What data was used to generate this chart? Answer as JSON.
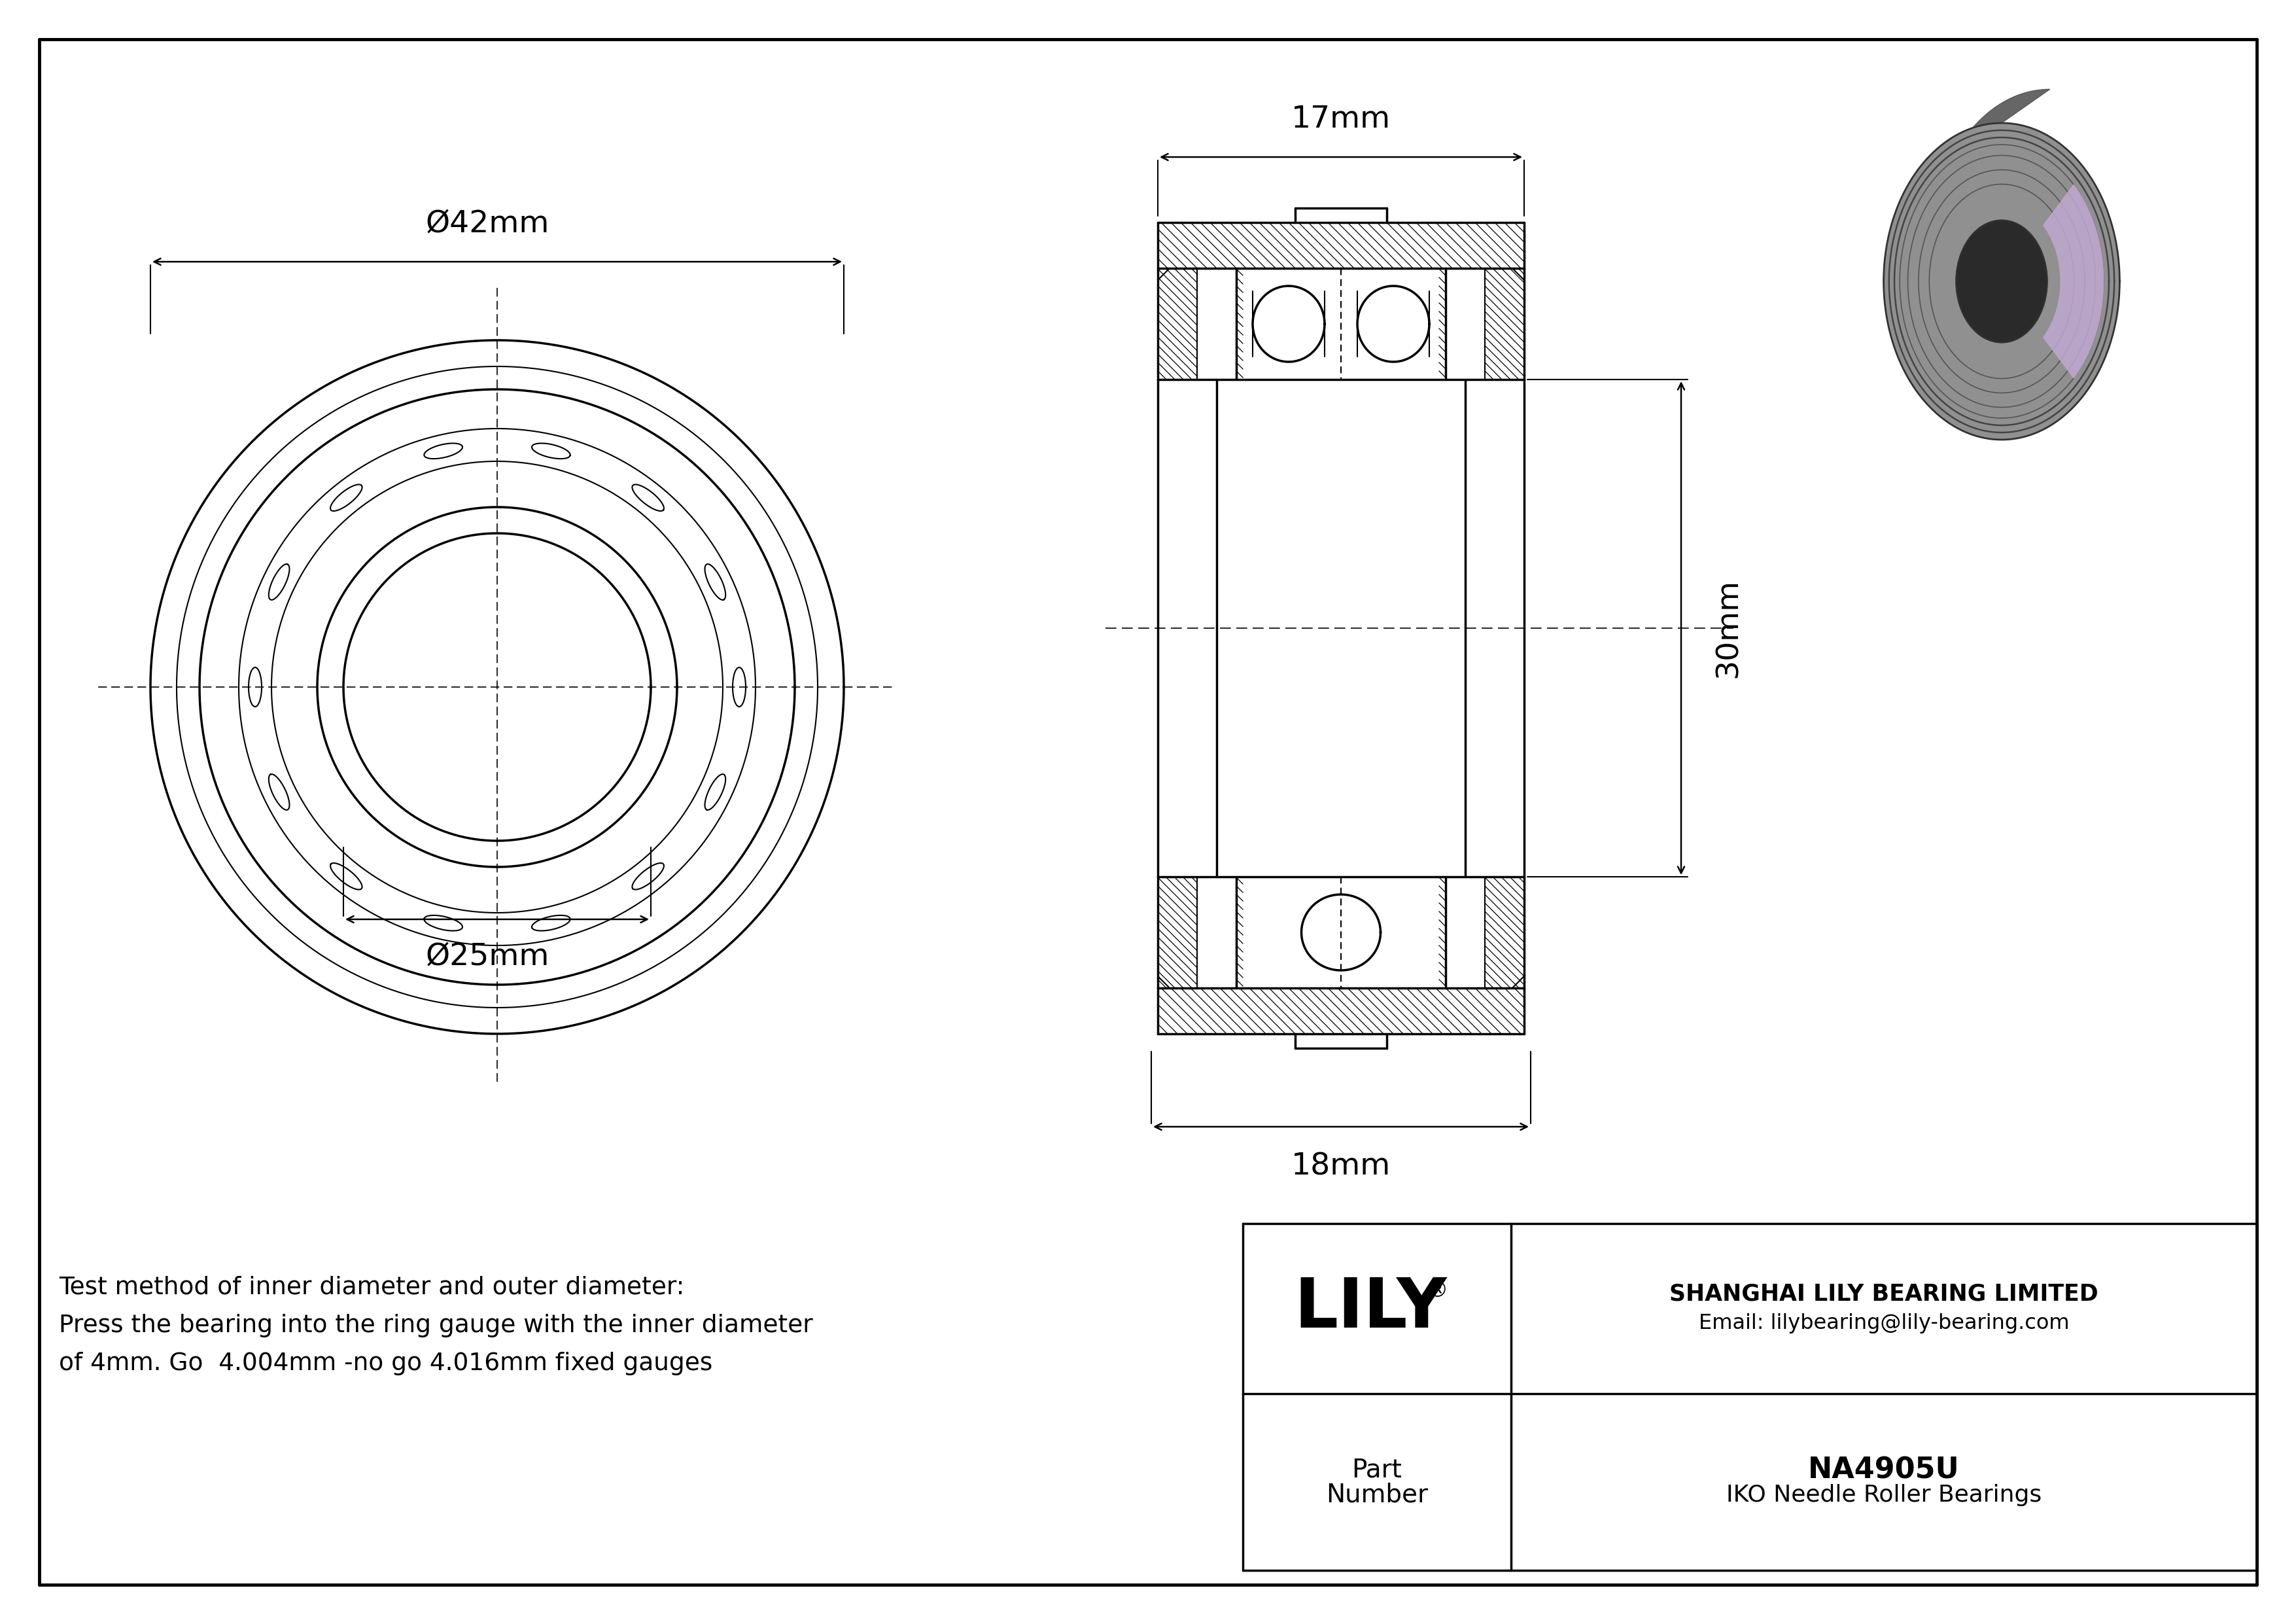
{
  "bg_color": "#ffffff",
  "line_color": "#000000",
  "part_number": "NA4905U",
  "bearing_type": "IKO Needle Roller Bearings",
  "company": "SHANGHAI LILY BEARING LIMITED",
  "email": "Email: lilybearing@lily-bearing.com",
  "logo_reg": "®",
  "dim_42": "Ø42mm",
  "dim_25": "Ø25mm",
  "dim_17": "17mm",
  "dim_30": "30mm",
  "dim_18": "18mm",
  "note_line1": "Test method of inner diameter and outer diameter:",
  "note_line2": "Press the bearing into the ring gauge with the inner diameter",
  "note_line3": "of 4mm. Go  4.004mm -no go 4.016mm fixed gauges"
}
